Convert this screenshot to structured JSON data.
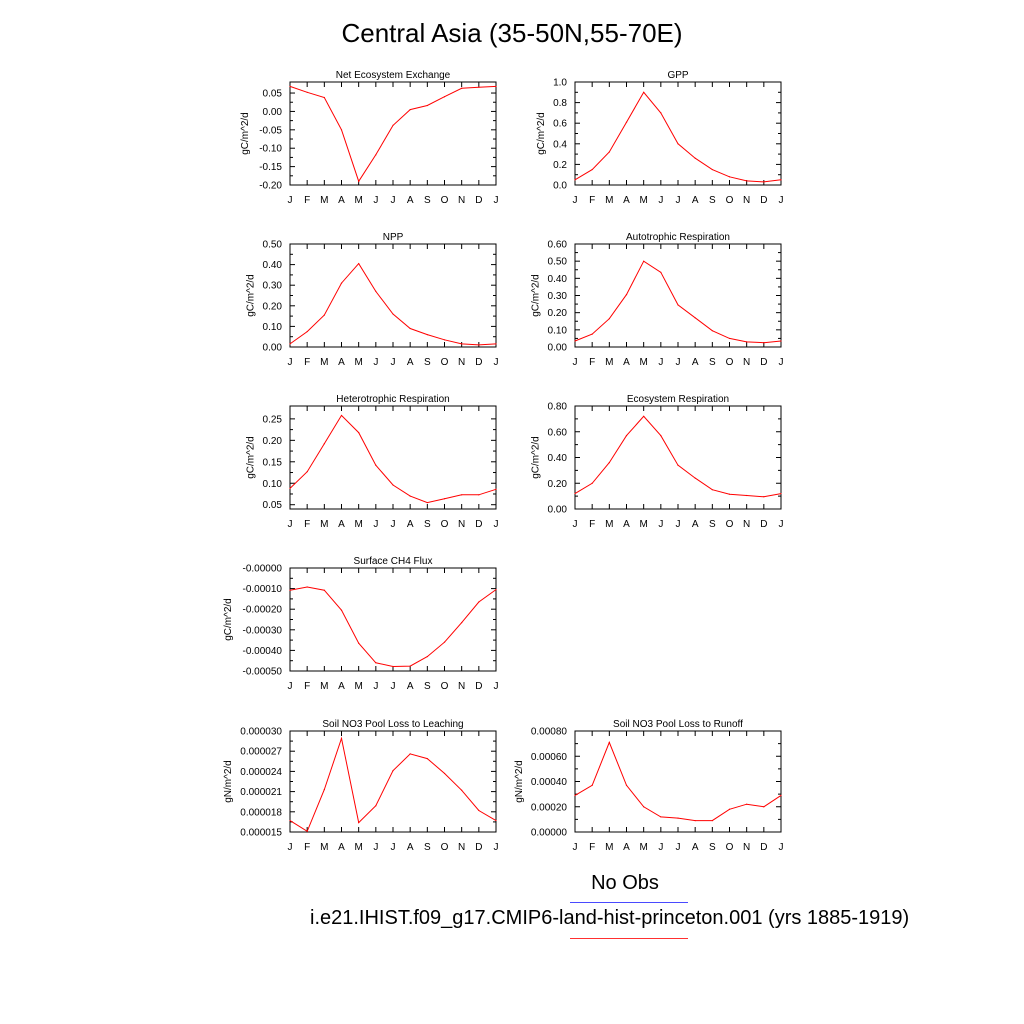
{
  "title": "Central Asia (35-50N,55-70E)",
  "colors": {
    "model": "#ff0000",
    "obs": "#4a4aff",
    "axis": "#000000"
  },
  "legend": {
    "obs_label": "No Obs",
    "model_label": "i.e21.IHIST.f09_g17.CMIP6-land-hist-princeton.001 (yrs 1885-1919)"
  },
  "chart_data": [
    {
      "type": "line",
      "title": "Net Ecosystem Exchange",
      "ylabel": "gC/m^2/d",
      "categories": [
        "J",
        "F",
        "M",
        "A",
        "M",
        "J",
        "J",
        "A",
        "S",
        "O",
        "N",
        "D",
        "J"
      ],
      "ylim": [
        -0.2,
        0.08
      ],
      "yticks": [
        -0.2,
        -0.15,
        -0.1,
        -0.05,
        0.0,
        0.05
      ],
      "ytick_labels": [
        "-0.20",
        "-0.15",
        "-0.10",
        "-0.05",
        "0.00",
        "0.05"
      ],
      "values": [
        0.068,
        0.052,
        0.038,
        -0.05,
        -0.19,
        -0.118,
        -0.038,
        0.005,
        0.016,
        0.04,
        0.063,
        0.066,
        0.068
      ]
    },
    {
      "type": "line",
      "title": "GPP",
      "ylabel": "gC/m^2/d",
      "categories": [
        "J",
        "F",
        "M",
        "A",
        "M",
        "J",
        "J",
        "A",
        "S",
        "O",
        "N",
        "D",
        "J"
      ],
      "ylim": [
        0.0,
        1.0
      ],
      "yticks": [
        0.0,
        0.2,
        0.4,
        0.6,
        0.8,
        1.0
      ],
      "ytick_labels": [
        "0.0",
        "0.2",
        "0.4",
        "0.6",
        "0.8",
        "1.0"
      ],
      "values": [
        0.05,
        0.15,
        0.32,
        0.61,
        0.9,
        0.7,
        0.4,
        0.26,
        0.15,
        0.08,
        0.04,
        0.03,
        0.05
      ]
    },
    {
      "type": "line",
      "title": "NPP",
      "ylabel": "gC/m^2/d",
      "categories": [
        "J",
        "F",
        "M",
        "A",
        "M",
        "J",
        "J",
        "A",
        "S",
        "O",
        "N",
        "D",
        "J"
      ],
      "ylim": [
        0.0,
        0.5
      ],
      "yticks": [
        0.0,
        0.1,
        0.2,
        0.3,
        0.4,
        0.5
      ],
      "ytick_labels": [
        "0.00",
        "0.10",
        "0.20",
        "0.30",
        "0.40",
        "0.50"
      ],
      "values": [
        0.015,
        0.075,
        0.155,
        0.31,
        0.405,
        0.27,
        0.16,
        0.09,
        0.06,
        0.035,
        0.015,
        0.01,
        0.015
      ]
    },
    {
      "type": "line",
      "title": "Autotrophic Respiration",
      "ylabel": "gC/m^2/d",
      "categories": [
        "J",
        "F",
        "M",
        "A",
        "M",
        "J",
        "J",
        "A",
        "S",
        "O",
        "N",
        "D",
        "J"
      ],
      "ylim": [
        0.0,
        0.6
      ],
      "yticks": [
        0.0,
        0.1,
        0.2,
        0.3,
        0.4,
        0.5,
        0.6
      ],
      "ytick_labels": [
        "0.00",
        "0.10",
        "0.20",
        "0.30",
        "0.40",
        "0.50",
        "0.60"
      ],
      "values": [
        0.035,
        0.075,
        0.165,
        0.305,
        0.5,
        0.435,
        0.245,
        0.17,
        0.095,
        0.05,
        0.03,
        0.025,
        0.035
      ]
    },
    {
      "type": "line",
      "title": "Heterotrophic Respiration",
      "ylabel": "gC/m^2/d",
      "categories": [
        "J",
        "F",
        "M",
        "A",
        "M",
        "J",
        "J",
        "A",
        "S",
        "O",
        "N",
        "D",
        "J"
      ],
      "ylim": [
        0.04,
        0.28
      ],
      "yticks": [
        0.05,
        0.1,
        0.15,
        0.2,
        0.25
      ],
      "ytick_labels": [
        "0.05",
        "0.10",
        "0.15",
        "0.20",
        "0.25"
      ],
      "values": [
        0.088,
        0.127,
        0.192,
        0.258,
        0.218,
        0.142,
        0.096,
        0.07,
        0.055,
        0.064,
        0.073,
        0.073,
        0.086
      ]
    },
    {
      "type": "line",
      "title": "Ecosystem Respiration",
      "ylabel": "gC/m^2/d",
      "categories": [
        "J",
        "F",
        "M",
        "A",
        "M",
        "J",
        "J",
        "A",
        "S",
        "O",
        "N",
        "D",
        "J"
      ],
      "ylim": [
        0.0,
        0.8
      ],
      "yticks": [
        0.0,
        0.2,
        0.4,
        0.6,
        0.8
      ],
      "ytick_labels": [
        "0.00",
        "0.20",
        "0.40",
        "0.60",
        "0.80"
      ],
      "values": [
        0.12,
        0.2,
        0.36,
        0.57,
        0.72,
        0.57,
        0.34,
        0.24,
        0.15,
        0.115,
        0.105,
        0.095,
        0.12
      ]
    },
    {
      "type": "line",
      "title": "Surface CH4 Flux",
      "ylabel": "gC/m^2/d",
      "categories": [
        "J",
        "F",
        "M",
        "A",
        "M",
        "J",
        "J",
        "A",
        "S",
        "O",
        "N",
        "D",
        "J"
      ],
      "ylim": [
        -0.0005,
        0.0
      ],
      "yticks": [
        -0.0005,
        -0.0004,
        -0.0003,
        -0.0002,
        -0.0001,
        0.0
      ],
      "ytick_labels": [
        "-0.00050",
        "-0.00040",
        "-0.00030",
        "-0.00020",
        "-0.00010",
        "-0.00000"
      ],
      "values": [
        -0.000108,
        -9.2e-05,
        -0.000108,
        -0.000205,
        -0.000365,
        -0.00046,
        -0.000478,
        -0.000476,
        -0.00043,
        -0.00036,
        -0.000265,
        -0.000165,
        -0.000105
      ]
    },
    {
      "type": "line",
      "title": "Soil NO3 Pool Loss to Leaching",
      "ylabel": "gN/m^2/d",
      "categories": [
        "J",
        "F",
        "M",
        "A",
        "M",
        "J",
        "J",
        "A",
        "S",
        "O",
        "N",
        "D",
        "J"
      ],
      "ylim": [
        1.5e-05,
        3e-05
      ],
      "yticks": [
        1.5e-05,
        1.8e-05,
        2.1e-05,
        2.4e-05,
        2.7e-05,
        3e-05
      ],
      "ytick_labels": [
        "0.000015",
        "0.000018",
        "0.000021",
        "0.000024",
        "0.000027",
        "0.000030"
      ],
      "values": [
        1.67e-05,
        1.51e-05,
        2.13e-05,
        2.89e-05,
        1.64e-05,
        1.89e-05,
        2.41e-05,
        2.66e-05,
        2.59e-05,
        2.37e-05,
        2.12e-05,
        1.82e-05,
        1.67e-05
      ]
    },
    {
      "type": "line",
      "title": "Soil NO3 Pool Loss to Runoff",
      "ylabel": "gN/m^2/d",
      "categories": [
        "J",
        "F",
        "M",
        "A",
        "M",
        "J",
        "J",
        "A",
        "S",
        "O",
        "N",
        "D",
        "J"
      ],
      "ylim": [
        0.0,
        0.0008
      ],
      "yticks": [
        0.0,
        0.0002,
        0.0004,
        0.0006,
        0.0008
      ],
      "ytick_labels": [
        "0.00000",
        "0.00020",
        "0.00040",
        "0.00060",
        "0.00080"
      ],
      "values": [
        0.00029,
        0.00037,
        0.00071,
        0.00037,
        0.0002,
        0.00012,
        0.00011,
        9e-05,
        9e-05,
        0.00018,
        0.00022,
        0.0002,
        0.00029
      ]
    }
  ]
}
